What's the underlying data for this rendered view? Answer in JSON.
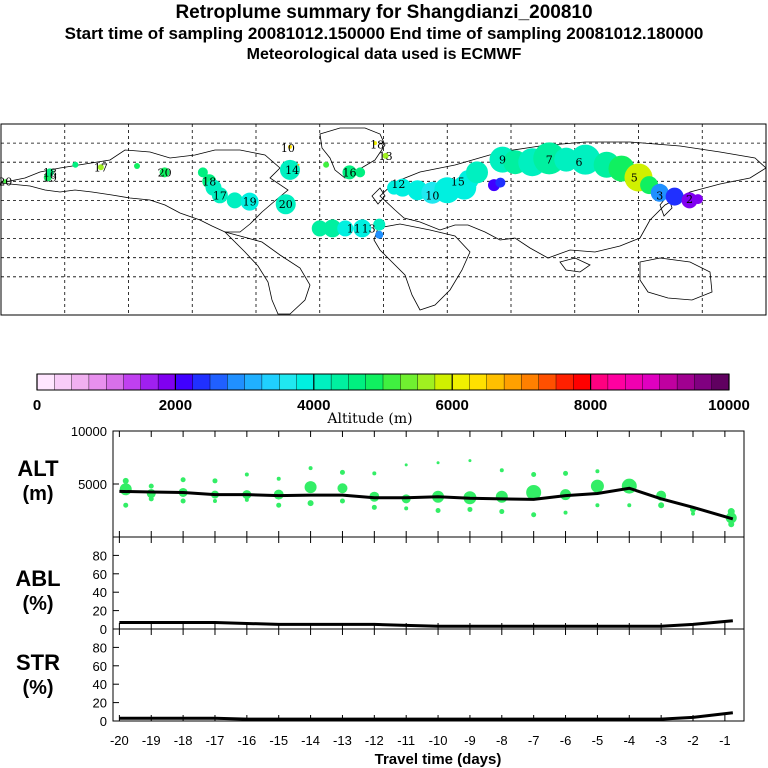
{
  "header": {
    "title": "Retroplume summary for Shangdianzi_200810",
    "sampling": "Start time of sampling 20081012.150000     End time of sampling 20081012.180000",
    "met": "Meteorological data used is ECMWF"
  },
  "colorbar": {
    "label": "Altitude (m)",
    "ticks": [
      "0",
      "2000",
      "4000",
      "6000",
      "8000",
      "10000"
    ],
    "min": 0,
    "max": 10000,
    "colors": [
      "#ffe6ff",
      "#f8ccf8",
      "#f0b0f0",
      "#e890ee",
      "#d870ea",
      "#c040f0",
      "#a020f0",
      "#8000f0",
      "#4000ff",
      "#2030ff",
      "#2060ff",
      "#2090ff",
      "#20b0ff",
      "#20d0ff",
      "#20e8f0",
      "#00f0e0",
      "#00f0c0",
      "#00f0a0",
      "#00f080",
      "#10f060",
      "#40f040",
      "#70f030",
      "#a0f020",
      "#d0f000",
      "#f0f000",
      "#ffe000",
      "#ffc000",
      "#ffa000",
      "#ff8000",
      "#ff5000",
      "#ff2000",
      "#ff0000",
      "#ff0080",
      "#ff00a0",
      "#f000b0",
      "#e000c0",
      "#c000a0",
      "#a00090",
      "#800080",
      "#600060"
    ]
  },
  "map_labels": [
    {
      "text": "20",
      "lon": -178,
      "lat": 45,
      "alt": 5200
    },
    {
      "text": "19",
      "lon": -157,
      "lat": 48,
      "alt": 4700
    },
    {
      "text": "18",
      "lon": -157,
      "lat": 52,
      "alt": 4600
    },
    {
      "text": "17",
      "lon": -133,
      "lat": 56,
      "alt": 5500
    },
    {
      "text": "20",
      "lon": -103,
      "lat": 52,
      "alt": 5000
    },
    {
      "text": "18",
      "lon": -82,
      "lat": 45,
      "alt": 4600
    },
    {
      "text": "17",
      "lon": -77,
      "lat": 34,
      "alt": 4100
    },
    {
      "text": "19",
      "lon": -63,
      "lat": 29,
      "alt": 3900
    },
    {
      "text": "20",
      "lon": -46,
      "lat": 27,
      "alt": 4200
    },
    {
      "text": "14",
      "lon": -43,
      "lat": 54,
      "alt": 4600
    },
    {
      "text": "10",
      "lon": -45,
      "lat": 71,
      "alt": 6300
    },
    {
      "text": "16",
      "lon": -16,
      "lat": 52,
      "alt": 4600
    },
    {
      "text": "18",
      "lon": -3,
      "lat": 74,
      "alt": 6100
    },
    {
      "text": "13",
      "lon": 1,
      "lat": 65,
      "alt": 5700
    },
    {
      "text": "12",
      "lon": 7,
      "lat": 43,
      "alt": 3900
    },
    {
      "text": "13",
      "lon": -7,
      "lat": 8,
      "alt": 3800
    },
    {
      "text": "11",
      "lon": -14,
      "lat": 8,
      "alt": 3900
    },
    {
      "text": "10",
      "lon": 23,
      "lat": 34,
      "alt": 3900
    },
    {
      "text": "15",
      "lon": 35,
      "lat": 45,
      "alt": 4100
    },
    {
      "text": "9",
      "lon": 56,
      "lat": 62,
      "alt": 4300
    },
    {
      "text": "7",
      "lon": 78,
      "lat": 62,
      "alt": 4300
    },
    {
      "text": "6",
      "lon": 92,
      "lat": 60,
      "alt": 4000
    },
    {
      "text": "5",
      "lon": 118,
      "lat": 48,
      "alt": 5600
    },
    {
      "text": "3",
      "lon": 130,
      "lat": 34,
      "alt": 3000
    },
    {
      "text": "2",
      "lon": 144,
      "lat": 31,
      "alt": 1900
    }
  ],
  "chart_data": [
    {
      "type": "scatter",
      "name": "plume-map",
      "title": "",
      "xlim": [
        -180,
        180
      ],
      "ylim": [
        -60,
        90
      ],
      "series": [
        {
          "name": "plume centroids (lon, lat, alt m, size)",
          "points": [
            [
              -178,
              45,
              5200,
              2
            ],
            [
              -158,
              48,
              4800,
              4
            ],
            [
              -157,
              52,
              4600,
              4
            ],
            [
              -145,
              58,
              4600,
              3
            ],
            [
              -133,
              56,
              5500,
              3
            ],
            [
              -116,
              57,
              4800,
              3
            ],
            [
              -103,
              52,
              4800,
              5
            ],
            [
              -85,
              52,
              4500,
              5
            ],
            [
              -82,
              45,
              4600,
              7
            ],
            [
              -80,
              40,
              4200,
              8
            ],
            [
              -77,
              34,
              4100,
              8
            ],
            [
              -70,
              30,
              4000,
              8
            ],
            [
              -63,
              29,
              3900,
              9
            ],
            [
              -46,
              27,
              4000,
              10
            ],
            [
              -44,
              54,
              4200,
              10
            ],
            [
              -44,
              72,
              6400,
              2
            ],
            [
              -40,
              58,
              6600,
              1
            ],
            [
              -27,
              58,
              5000,
              3
            ],
            [
              -16,
              52,
              4700,
              7
            ],
            [
              -11,
              52,
              4700,
              5
            ],
            [
              1,
              65,
              5700,
              3
            ],
            [
              -4,
              75,
              6000,
              2
            ],
            [
              -30,
              8,
              4400,
              8
            ],
            [
              -24,
              8,
              4300,
              9
            ],
            [
              -18,
              8,
              3900,
              8
            ],
            [
              -10,
              8,
              3800,
              9
            ],
            [
              -2,
              11,
              4000,
              6
            ],
            [
              -2,
              3,
              2800,
              4
            ],
            [
              5,
              40,
              3800,
              7
            ],
            [
              9,
              40,
              3900,
              9
            ],
            [
              16,
              38,
              3900,
              10
            ],
            [
              23,
              36,
              3700,
              11
            ],
            [
              30,
              38,
              3800,
              13
            ],
            [
              38,
              40,
              3900,
              12
            ],
            [
              40,
              46,
              3900,
              10
            ],
            [
              44,
              52,
              4100,
              11
            ],
            [
              56,
              62,
              4100,
              13
            ],
            [
              62,
              60,
              4300,
              12
            ],
            [
              70,
              60,
              4200,
              14
            ],
            [
              78,
              63,
              4300,
              16
            ],
            [
              86,
              62,
              4000,
              12
            ],
            [
              95,
              62,
              4200,
              15
            ],
            [
              105,
              58,
              4400,
              13
            ],
            [
              109,
              58,
              6600,
              3
            ],
            [
              52,
              42,
              2100,
              6
            ],
            [
              55,
              44,
              2300,
              5
            ],
            [
              112,
              55,
              4900,
              13
            ],
            [
              120,
              48,
              5800,
              14
            ],
            [
              125,
              42,
              4800,
              9
            ],
            [
              130,
              36,
              2800,
              9
            ],
            [
              137,
              33,
              2300,
              9
            ],
            [
              144,
              30,
              1900,
              8
            ],
            [
              148,
              31,
              1800,
              5
            ]
          ]
        }
      ]
    },
    {
      "type": "scatter",
      "name": "altitude-vs-time",
      "xlabel": "Travel time (days)",
      "ylabel": "ALT (m)",
      "xlim": [
        -20.2,
        -0.4
      ],
      "ylim": [
        0,
        10000
      ],
      "yticks": [
        "5000",
        "10000"
      ],
      "series": [
        {
          "name": "mean altitude",
          "x": [
            -20,
            -19,
            -18,
            -17,
            -16,
            -15,
            -14,
            -13,
            -12,
            -11,
            -10,
            -9,
            -8,
            -7,
            -6,
            -5,
            -4,
            -3,
            -2,
            -0.75
          ],
          "y": [
            4300,
            4250,
            4200,
            4000,
            4000,
            3900,
            3950,
            3950,
            3700,
            3700,
            3800,
            3650,
            3600,
            3550,
            3900,
            4100,
            4600,
            3600,
            2800,
            1700
          ]
        },
        {
          "name": "cluster altitudes",
          "points": [
            [
              -19.8,
              4500,
              11
            ],
            [
              -19.8,
              5300,
              5
            ],
            [
              -19.8,
              3000,
              4
            ],
            [
              -19,
              4100,
              8
            ],
            [
              -19,
              4800,
              4
            ],
            [
              -19,
              3600,
              4
            ],
            [
              -18,
              4200,
              8
            ],
            [
              -18,
              5400,
              4
            ],
            [
              -18,
              3400,
              4
            ],
            [
              -17,
              4000,
              7
            ],
            [
              -17,
              5300,
              4
            ],
            [
              -17,
              3400,
              3
            ],
            [
              -16,
              4000,
              8
            ],
            [
              -16,
              5900,
              3
            ],
            [
              -16,
              3500,
              3
            ],
            [
              -15,
              4000,
              9
            ],
            [
              -15,
              5500,
              3
            ],
            [
              -15,
              3000,
              4
            ],
            [
              -14,
              4700,
              11
            ],
            [
              -14,
              6500,
              3
            ],
            [
              -14,
              3200,
              5
            ],
            [
              -13,
              4600,
              9
            ],
            [
              -13,
              6100,
              4
            ],
            [
              -13,
              3400,
              4
            ],
            [
              -12,
              3800,
              9
            ],
            [
              -12,
              6000,
              3
            ],
            [
              -12,
              2800,
              4
            ],
            [
              -11,
              3600,
              8
            ],
            [
              -11,
              6800,
              2
            ],
            [
              -11,
              2700,
              3
            ],
            [
              -10,
              3800,
              11
            ],
            [
              -10,
              7000,
              2
            ],
            [
              -10,
              2500,
              4
            ],
            [
              -9,
              3700,
              12
            ],
            [
              -9,
              7200,
              2
            ],
            [
              -9,
              2600,
              4
            ],
            [
              -8,
              3800,
              11
            ],
            [
              -8,
              6300,
              3
            ],
            [
              -8,
              2400,
              4
            ],
            [
              -7,
              4200,
              14
            ],
            [
              -7,
              5900,
              4
            ],
            [
              -7,
              2100,
              4
            ],
            [
              -6,
              4000,
              10
            ],
            [
              -6,
              6000,
              4
            ],
            [
              -6,
              2300,
              3
            ],
            [
              -5,
              4800,
              12
            ],
            [
              -5,
              6200,
              3
            ],
            [
              -5,
              3000,
              3
            ],
            [
              -4,
              4800,
              14
            ],
            [
              -4,
              3000,
              3
            ],
            [
              -3,
              3900,
              9
            ],
            [
              -3,
              3000,
              5
            ],
            [
              -2,
              2600,
              5
            ],
            [
              -2,
              2200,
              3
            ],
            [
              -0.8,
              1800,
              10
            ],
            [
              -0.8,
              2400,
              6
            ],
            [
              -0.8,
              1200,
              5
            ]
          ]
        }
      ]
    },
    {
      "type": "line",
      "name": "abl-fraction",
      "xlabel": "Travel time (days)",
      "ylabel": "ABL (%)",
      "xlim": [
        -20.2,
        -0.4
      ],
      "ylim": [
        0,
        100
      ],
      "yticks": [
        "0",
        "20",
        "40",
        "60",
        "80"
      ],
      "series": [
        {
          "name": "ABL fraction",
          "x": [
            -20,
            -19,
            -18,
            -17,
            -16,
            -15,
            -14,
            -13,
            -12,
            -11,
            -10,
            -9,
            -8,
            -7,
            -6,
            -5,
            -4,
            -3,
            -2,
            -0.75
          ],
          "y": [
            7,
            7,
            7,
            7,
            6,
            5,
            5,
            5,
            5,
            4,
            3,
            3,
            3,
            3,
            3,
            3,
            3,
            3,
            5,
            9
          ]
        }
      ]
    },
    {
      "type": "line",
      "name": "str-fraction",
      "xlabel": "Travel time (days)",
      "ylabel": "STR (%)",
      "xlim": [
        -20.2,
        -0.4
      ],
      "ylim": [
        0,
        100
      ],
      "yticks": [
        "0",
        "20",
        "40",
        "60",
        "80"
      ],
      "xticks": [
        "-20",
        "-19",
        "-18",
        "-17",
        "-16",
        "-15",
        "-14",
        "-13",
        "-12",
        "-11",
        "-10",
        "-9",
        "-8",
        "-7",
        "-6",
        "-5",
        "-4",
        "-3",
        "-2",
        "-1"
      ],
      "series": [
        {
          "name": "stratospheric fraction",
          "x": [
            -20,
            -19,
            -18,
            -17,
            -16,
            -15,
            -14,
            -13,
            -12,
            -11,
            -10,
            -9,
            -8,
            -7,
            -6,
            -5,
            -4,
            -3,
            -2,
            -0.75
          ],
          "y": [
            3,
            3,
            3,
            3,
            2,
            2,
            2,
            2,
            2,
            2,
            2,
            2,
            2,
            2,
            2,
            2,
            2,
            2,
            4,
            9
          ]
        }
      ]
    }
  ]
}
